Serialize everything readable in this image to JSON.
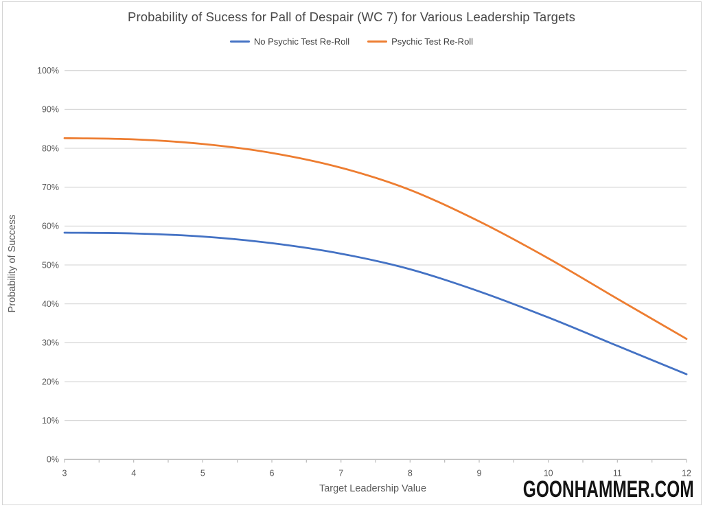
{
  "page": {
    "title": "Probability of Sucess for Pall of Despair (WC 7) for Various Leadership Targets",
    "watermark": "GOONHAMMER.COM"
  },
  "chart_data": {
    "type": "line",
    "title": "Probability of Sucess for Pall of Despair (WC 7) for Various Leadership Targets",
    "xlabel": "Target Leadership Value",
    "ylabel": "Probability of Success",
    "categories": [
      3,
      4,
      5,
      6,
      7,
      8,
      9,
      10,
      11,
      12
    ],
    "x_tick_labels": [
      "3",
      "4",
      "5",
      "6",
      "7",
      "8",
      "9",
      "10",
      "11",
      "12"
    ],
    "y_ticks": [
      0,
      10,
      20,
      30,
      40,
      50,
      60,
      70,
      80,
      90,
      100
    ],
    "y_tick_labels": [
      "0%",
      "10%",
      "20%",
      "30%",
      "40%",
      "50%",
      "60%",
      "70%",
      "80%",
      "90%",
      "100%"
    ],
    "ylim": [
      0,
      100
    ],
    "grid": true,
    "legend_position": "top",
    "line_smoothing": true,
    "series": [
      {
        "name": "No Psychic Test Re-Roll",
        "color": "#4472C4",
        "values": [
          58.3,
          58.1,
          57.3,
          55.6,
          52.9,
          48.9,
          43.2,
          36.5,
          29.2,
          21.9
        ]
      },
      {
        "name": "Psychic Test Re-Roll",
        "color": "#ED7D31",
        "values": [
          82.6,
          82.3,
          81.1,
          78.8,
          75.0,
          69.3,
          61.2,
          51.7,
          41.3,
          31.0
        ]
      }
    ]
  },
  "colors": {
    "gridline": "#D9D9D9",
    "axis_line": "#BFBFBF",
    "tick_label": "#595959",
    "border": "#D4D4D4",
    "watermark": "#141414",
    "background": "#FFFFFF"
  }
}
